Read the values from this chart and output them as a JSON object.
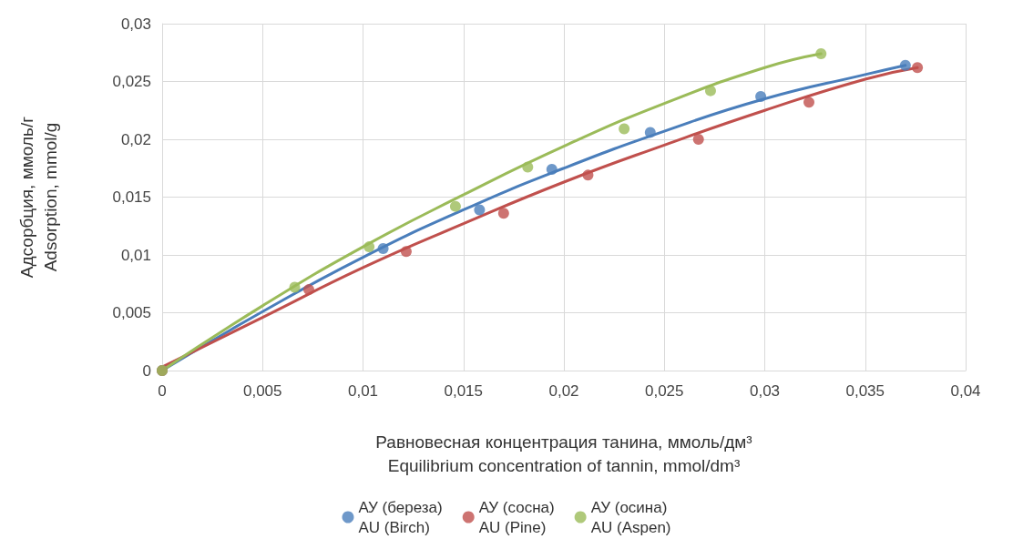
{
  "chart_data": {
    "type": "scatter",
    "xlabel": "Равновесная концентрация танина, ммоль/дм³\nEquilibrium concentration of tannin, mmol/dm³",
    "ylabel": "Адсорбция, ммоль/г\nAdsorption, mmol/g",
    "xlim": [
      0,
      0.04
    ],
    "xticks": [
      {
        "value": 0,
        "label": "0"
      },
      {
        "value": 0.005,
        "label": "0,005"
      },
      {
        "value": 0.01,
        "label": "0,01"
      },
      {
        "value": 0.015,
        "label": "0,015"
      },
      {
        "value": 0.02,
        "label": "0,02"
      },
      {
        "value": 0.025,
        "label": "0,025"
      },
      {
        "value": 0.03,
        "label": "0,03"
      },
      {
        "value": 0.035,
        "label": "0,035"
      },
      {
        "value": 0.04,
        "label": "0,04"
      }
    ],
    "ylim": [
      0,
      0.03
    ],
    "yticks": [
      {
        "value": 0,
        "label": "0"
      },
      {
        "value": 0.005,
        "label": "0,005"
      },
      {
        "value": 0.01,
        "label": "0,01"
      },
      {
        "value": 0.015,
        "label": "0,015"
      },
      {
        "value": 0.02,
        "label": "0,02"
      },
      {
        "value": 0.025,
        "label": "0,025"
      },
      {
        "value": 0.03,
        "label": "0,03"
      }
    ],
    "grid": true,
    "legend": "bottom",
    "marker": "circle",
    "series": [
      {
        "name": "АУ (береза)\nAU (Birch)",
        "color": "#4a7ebb",
        "x": [
          0,
          0.0073,
          0.011,
          0.0158,
          0.0194,
          0.0243,
          0.0298,
          0.037
        ],
        "values": [
          0,
          null,
          0.01055,
          0.0139,
          0.0174,
          0.0206,
          0.0237,
          0.0264
        ]
      },
      {
        "name": "АУ (сосна)\nAU (Pine)",
        "color": "#c0504d",
        "x": [
          0,
          0.0073,
          0.01215,
          0.017,
          0.0212,
          0.0267,
          0.0322,
          0.0376
        ],
        "values": [
          0,
          0.007,
          0.0103,
          0.0136,
          0.0169,
          0.02,
          0.0232,
          0.0262
        ]
      },
      {
        "name": "АУ (осина)\nAU (Aspen)",
        "color": "#9bbb59",
        "x": [
          0,
          0.0066,
          0.0103,
          0.0146,
          0.0182,
          0.023,
          0.0273,
          0.0328
        ],
        "values": [
          0,
          0.0072,
          0.0107,
          0.0142,
          0.0176,
          0.0209,
          0.0242,
          0.0274
        ]
      },
      {
        "type": "line",
        "marker": "none",
        "color": "#4a7ebb",
        "x": [
          0,
          0.005,
          0.01,
          0.015,
          0.02,
          0.025,
          0.03,
          0.035,
          0.037
        ],
        "values": [
          0,
          0.0051,
          0.0098,
          0.0139,
          0.0175,
          0.0207,
          0.0235,
          0.0256,
          0.0264
        ]
      },
      {
        "type": "line",
        "marker": "none",
        "color": "#c0504d",
        "x": [
          0,
          0.005,
          0.01,
          0.015,
          0.02,
          0.025,
          0.03,
          0.035,
          0.0376
        ],
        "values": [
          0.0003,
          0.0046,
          0.0089,
          0.0127,
          0.0163,
          0.0195,
          0.0225,
          0.0252,
          0.0262
        ]
      },
      {
        "type": "line",
        "marker": "none",
        "color": "#9bbb59",
        "x": [
          0,
          0.005,
          0.01,
          0.015,
          0.02,
          0.025,
          0.03,
          0.0328
        ],
        "values": [
          0,
          0.0056,
          0.0107,
          0.0152,
          0.0194,
          0.0231,
          0.0262,
          0.0274
        ]
      }
    ]
  }
}
